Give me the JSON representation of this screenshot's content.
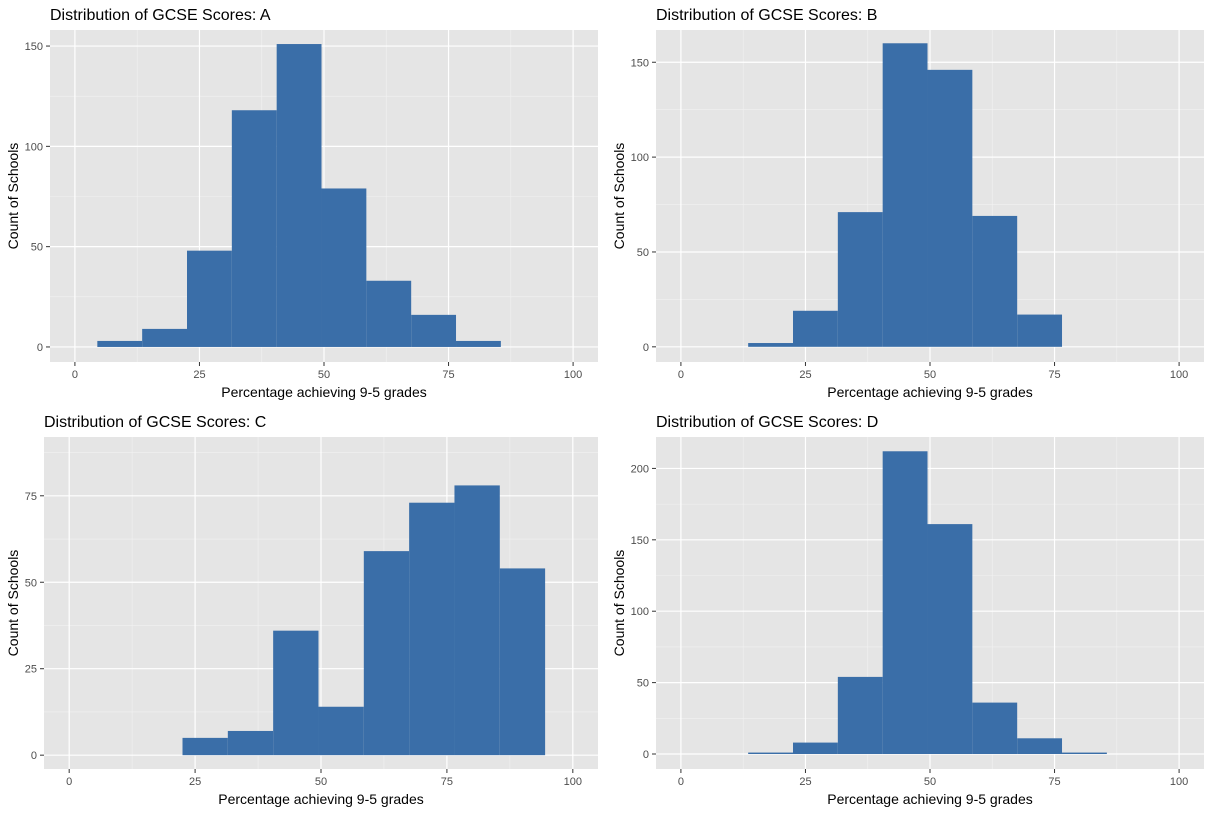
{
  "chart_data": [
    {
      "type": "bar",
      "title": "Distribution of GCSE Scores: A",
      "xlabel": "Percentage achieving 9-5 grades",
      "ylabel": "Count of Schools",
      "xlim": [
        -5,
        105
      ],
      "ylim": [
        -7.5,
        158
      ],
      "x_ticks": [
        0,
        25,
        50,
        75,
        100
      ],
      "y_ticks": [
        0,
        50,
        100,
        150
      ],
      "bins": [
        {
          "start": 4.5,
          "end": 13.5,
          "count": 3
        },
        {
          "start": 13.5,
          "end": 22.5,
          "count": 9
        },
        {
          "start": 22.5,
          "end": 31.5,
          "count": 48
        },
        {
          "start": 31.5,
          "end": 40.5,
          "count": 118
        },
        {
          "start": 40.5,
          "end": 49.5,
          "count": 151
        },
        {
          "start": 49.5,
          "end": 58.5,
          "count": 79
        },
        {
          "start": 58.5,
          "end": 67.5,
          "count": 33
        },
        {
          "start": 67.5,
          "end": 76.5,
          "count": 16
        },
        {
          "start": 76.5,
          "end": 85.5,
          "count": 3
        }
      ],
      "bar_color": "#3A6EA8",
      "grid": true
    },
    {
      "type": "bar",
      "title": "Distribution of GCSE Scores: B",
      "xlabel": "Percentage achieving 9-5 grades",
      "ylabel": "Count of Schools",
      "xlim": [
        -5,
        105
      ],
      "ylim": [
        -8,
        167
      ],
      "x_ticks": [
        0,
        25,
        50,
        75,
        100
      ],
      "y_ticks": [
        0,
        50,
        100,
        150
      ],
      "bins": [
        {
          "start": 13.5,
          "end": 22.5,
          "count": 2
        },
        {
          "start": 22.5,
          "end": 31.5,
          "count": 19
        },
        {
          "start": 31.5,
          "end": 40.5,
          "count": 71
        },
        {
          "start": 40.5,
          "end": 49.5,
          "count": 160
        },
        {
          "start": 49.5,
          "end": 58.5,
          "count": 146
        },
        {
          "start": 58.5,
          "end": 67.5,
          "count": 69
        },
        {
          "start": 67.5,
          "end": 76.5,
          "count": 17
        }
      ],
      "bar_color": "#3A6EA8",
      "grid": true
    },
    {
      "type": "bar",
      "title": "Distribution of GCSE Scores: C",
      "xlabel": "Percentage achieving 9-5 grades",
      "ylabel": "Count of Schools",
      "xlim": [
        -5,
        105
      ],
      "ylim": [
        -4,
        92
      ],
      "x_ticks": [
        0,
        25,
        50,
        75,
        100
      ],
      "y_ticks": [
        0,
        25,
        50,
        75
      ],
      "bins": [
        {
          "start": 22.5,
          "end": 31.5,
          "count": 5
        },
        {
          "start": 31.5,
          "end": 40.5,
          "count": 7
        },
        {
          "start": 40.5,
          "end": 49.5,
          "count": 36
        },
        {
          "start": 49.5,
          "end": 58.5,
          "count": 14
        },
        {
          "start": 58.5,
          "end": 67.5,
          "count": 59
        },
        {
          "start": 67.5,
          "end": 76.5,
          "count": 73
        },
        {
          "start": 76.5,
          "end": 85.5,
          "count": 78
        },
        {
          "start": 85.5,
          "end": 94.5,
          "count": 54
        }
      ],
      "bar_color": "#3A6EA8",
      "grid": true
    },
    {
      "type": "bar",
      "title": "Distribution of GCSE Scores: D",
      "xlabel": "Percentage achieving 9-5 grades",
      "ylabel": "Count of Schools",
      "xlim": [
        -5,
        105
      ],
      "ylim": [
        -10.5,
        222
      ],
      "x_ticks": [
        0,
        25,
        50,
        75,
        100
      ],
      "y_ticks": [
        0,
        50,
        100,
        150,
        200
      ],
      "bins": [
        {
          "start": 13.5,
          "end": 22.5,
          "count": 1
        },
        {
          "start": 22.5,
          "end": 31.5,
          "count": 8
        },
        {
          "start": 31.5,
          "end": 40.5,
          "count": 54
        },
        {
          "start": 40.5,
          "end": 49.5,
          "count": 212
        },
        {
          "start": 49.5,
          "end": 58.5,
          "count": 161
        },
        {
          "start": 58.5,
          "end": 67.5,
          "count": 36
        },
        {
          "start": 67.5,
          "end": 76.5,
          "count": 11
        },
        {
          "start": 76.5,
          "end": 85.5,
          "count": 1
        }
      ],
      "bar_color": "#3A6EA8",
      "grid": true
    }
  ]
}
